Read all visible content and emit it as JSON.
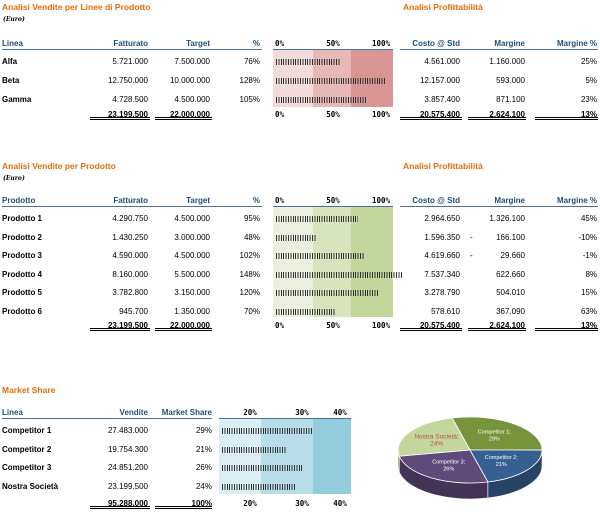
{
  "s1": {
    "title": "Analisi Vendite per Linee di Prodotto",
    "unit": "(Euro)",
    "headers": {
      "linea": "Linea",
      "fatturato": "Fatturato",
      "target": "Target",
      "pct": "%",
      "costo": "Costo @ Std",
      "margine": "Margine",
      "margine_pct": "Margine %"
    },
    "scale": [
      "0%",
      "50%",
      "100%"
    ],
    "rows": [
      {
        "name": "Alfa",
        "fatturato": "5.721.000",
        "target": "7.500.000",
        "pct": "76%",
        "pct_value": 76,
        "costo": "4.561.000",
        "margine_sign": "",
        "margine": "1.160.000",
        "margine_pct": "25%"
      },
      {
        "name": "Beta",
        "fatturato": "12.750.000",
        "target": "10.000.000",
        "pct": "128%",
        "pct_value": 128,
        "costo": "12.157.000",
        "margine_sign": "",
        "margine": "593.000",
        "margine_pct": "5%"
      },
      {
        "name": "Gamma",
        "fatturato": "4.728.500",
        "target": "4.500.000",
        "pct": "105%",
        "pct_value": 105,
        "costo": "3.857.400",
        "margine_sign": "",
        "margine": "871.100",
        "margine_pct": "23%"
      }
    ],
    "totals": {
      "fatturato": "23.199.500",
      "target": "22.000.000",
      "costo": "20.575.400",
      "margine": "2.624.100",
      "margine_pct": "13%"
    },
    "colors": [
      "#f2dcdb",
      "#e6b9b8",
      "#d99694"
    ]
  },
  "profit_title": "Analisi Profittabilità",
  "s2": {
    "title": "Analisi Vendite per Prodotto",
    "unit": "(Euro)",
    "headers": {
      "linea": "Prodotto",
      "fatturato": "Fatturato",
      "target": "Target",
      "pct": "%",
      "costo": "Costo @ Std",
      "margine": "Margine",
      "margine_pct": "Margine %"
    },
    "scale": [
      "0%",
      "50%",
      "100%"
    ],
    "rows": [
      {
        "name": "Prodotto 1",
        "fatturato": "4.290.750",
        "target": "4.500.000",
        "pct": "95%",
        "pct_value": 95,
        "costo": "2.964.650",
        "margine_sign": "",
        "margine": "1.326.100",
        "margine_pct": "45%"
      },
      {
        "name": "Prodotto 2",
        "fatturato": "1.430.250",
        "target": "3.000.000",
        "pct": "48%",
        "pct_value": 48,
        "costo": "1.596.350",
        "margine_sign": "-",
        "margine": "166.100",
        "margine_pct": "-10%"
      },
      {
        "name": "Prodotto 3",
        "fatturato": "4.590.000",
        "target": "4.500.000",
        "pct": "102%",
        "pct_value": 102,
        "costo": "4.619.660",
        "margine_sign": "-",
        "margine": "29.660",
        "margine_pct": "-1%"
      },
      {
        "name": "Prodotto 4",
        "fatturato": "8.160.000",
        "target": "5.500.000",
        "pct": "148%",
        "pct_value": 148,
        "costo": "7.537.340",
        "margine_sign": "",
        "margine": "622.660",
        "margine_pct": "8%"
      },
      {
        "name": "Prodotto 5",
        "fatturato": "3.782.800",
        "target": "3.150.000",
        "pct": "120%",
        "pct_value": 120,
        "costo": "3.278.790",
        "margine_sign": "",
        "margine": "504.010",
        "margine_pct": "15%"
      },
      {
        "name": "Prodotto 6",
        "fatturato": "945.700",
        "target": "1.350.000",
        "pct": "70%",
        "pct_value": 70,
        "costo": "578.610",
        "margine_sign": "",
        "margine": "367.090",
        "margine_pct": "63%"
      }
    ],
    "totals": {
      "fatturato": "23.199.500",
      "target": "22.000.000",
      "costo": "20.575.400",
      "margine": "2.624.100",
      "margine_pct": "13%"
    },
    "colors": [
      "#ebf1de",
      "#d7e4bc",
      "#c3d69b"
    ]
  },
  "s3": {
    "title": "Market Share",
    "headers": {
      "linea": "Linea",
      "vendite": "Vendite",
      "share": "Market Share"
    },
    "scale": [
      "20%",
      "30%",
      "40%"
    ],
    "rows": [
      {
        "name": "Competitor 1",
        "vendite": "27.483.000",
        "share": "29%",
        "share_value": 29
      },
      {
        "name": "Competitor 2",
        "vendite": "19.754.300",
        "share": "21%",
        "share_value": 21
      },
      {
        "name": "Competitor 3",
        "vendite": "24.851.200",
        "share": "26%",
        "share_value": 26
      },
      {
        "name": "Nostra Società",
        "vendite": "23.199.500",
        "share": "24%",
        "share_value": 24
      }
    ],
    "totals": {
      "vendite": "95.288.000",
      "share": "100%"
    },
    "colors": [
      "#dbeef4",
      "#b7dde8",
      "#93cddd"
    ]
  },
  "chart_data": {
    "type": "pie",
    "title": "",
    "categories": [
      "Competitor 1",
      "Competitor 2",
      "Competitor 3",
      "Nostra Società"
    ],
    "values": [
      29,
      21,
      26,
      24
    ],
    "labels": [
      "Competitor 1; 29%",
      "Competitor 2; 21%",
      "Competitor 3; 26%",
      "Nostra Società; 24%"
    ],
    "colors": [
      "#77933c",
      "#376092",
      "#604a7b",
      "#c3d69b"
    ]
  }
}
